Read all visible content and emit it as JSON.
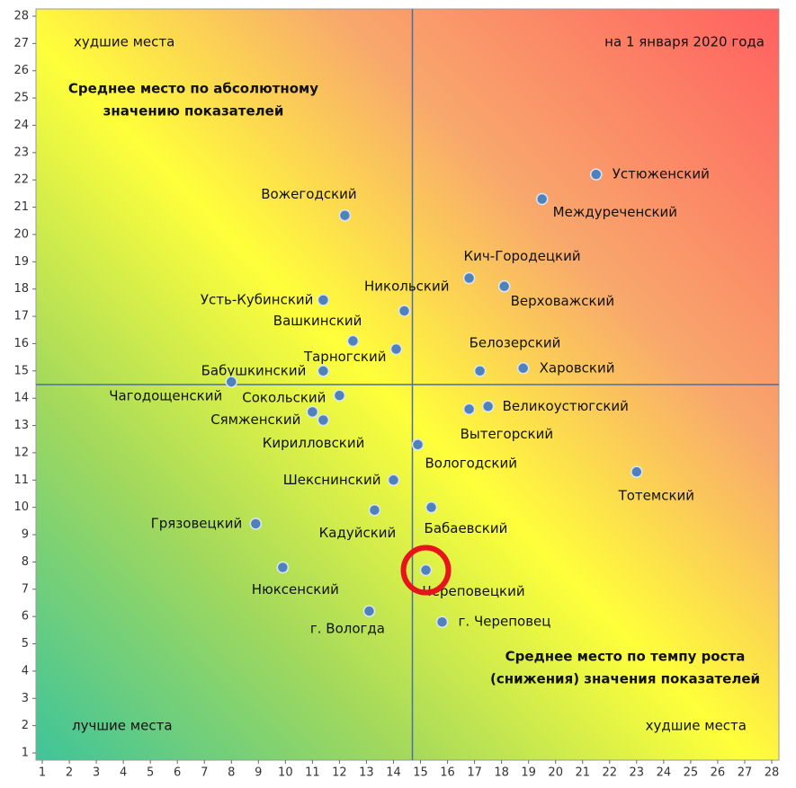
{
  "chart_data": {
    "type": "scatter",
    "xlim": [
      1,
      28
    ],
    "ylim": [
      1,
      28
    ],
    "xticks": [
      1,
      2,
      3,
      4,
      5,
      6,
      7,
      8,
      9,
      10,
      11,
      12,
      13,
      14,
      15,
      16,
      17,
      18,
      19,
      20,
      21,
      22,
      23,
      24,
      25,
      26,
      27,
      28
    ],
    "yticks": [
      1,
      2,
      3,
      4,
      5,
      6,
      7,
      8,
      9,
      10,
      11,
      12,
      13,
      14,
      15,
      16,
      17,
      18,
      19,
      20,
      21,
      22,
      23,
      24,
      25,
      26,
      27,
      28
    ],
    "color": "#4f81bd",
    "vline": 14.7,
    "hline": 14.5,
    "points": [
      {
        "label": "Устюженский",
        "x": 21.5,
        "y": 22.2
      },
      {
        "label": "Междуреченский",
        "x": 19.5,
        "y": 21.3
      },
      {
        "label": "Вожегодский",
        "x": 12.2,
        "y": 20.7
      },
      {
        "label": "Кич-Городецкий",
        "x": 16.8,
        "y": 18.4
      },
      {
        "label": "Верховажский",
        "x": 18.1,
        "y": 18.1
      },
      {
        "label": "Усть-Кубинский",
        "x": 11.4,
        "y": 17.6
      },
      {
        "label": "Никольский",
        "x": 14.4,
        "y": 17.2
      },
      {
        "label": "Вашкинский",
        "x": 12.5,
        "y": 16.1
      },
      {
        "label": "Тарногский",
        "x": 14.1,
        "y": 15.8
      },
      {
        "label": "Бабушкинский",
        "x": 11.4,
        "y": 15.0
      },
      {
        "label": "Белозерский",
        "x": 17.2,
        "y": 15.0
      },
      {
        "label": "Харовский",
        "x": 18.8,
        "y": 15.1
      },
      {
        "label": "Чагодощенский",
        "x": 8.0,
        "y": 14.6
      },
      {
        "label": "Сокольский",
        "x": 12.0,
        "y": 14.1
      },
      {
        "label": "Великоустюгский",
        "x": 17.5,
        "y": 13.7
      },
      {
        "label": "Вытегорский",
        "x": 16.8,
        "y": 13.6
      },
      {
        "label": "Сямженский",
        "x": 11.0,
        "y": 13.5
      },
      {
        "label": "Кирилловский",
        "x": 11.4,
        "y": 13.2
      },
      {
        "label": "Вологодский",
        "x": 14.9,
        "y": 12.3
      },
      {
        "label": "Тотемский",
        "x": 23.0,
        "y": 11.3
      },
      {
        "label": "Шекснинский",
        "x": 14.0,
        "y": 11.0
      },
      {
        "label": "Бабаевский",
        "x": 15.4,
        "y": 10.0
      },
      {
        "label": "Кадуйский",
        "x": 13.3,
        "y": 9.9
      },
      {
        "label": "Грязовецкий",
        "x": 8.9,
        "y": 9.4
      },
      {
        "label": "Нюксенский",
        "x": 9.9,
        "y": 7.8
      },
      {
        "label": "Череповецкий",
        "x": 15.2,
        "y": 7.7
      },
      {
        "label": "г. Вологда",
        "x": 13.1,
        "y": 6.2
      },
      {
        "label": "г. Череповец",
        "x": 15.8,
        "y": 5.8
      }
    ],
    "annotations": [
      {
        "lines": [
          "худшие места"
        ]
      },
      {
        "lines": [
          "на 1 января 2020 года"
        ]
      },
      {
        "lines": [
          "Среднее место по абсолютному",
          "значению показателей"
        ]
      },
      {
        "lines": [
          "Среднее место по темпу роста",
          "(снижения) значения показателей"
        ]
      },
      {
        "lines": [
          "лучшие места"
        ]
      },
      {
        "lines": [
          "худшие места"
        ]
      }
    ]
  }
}
